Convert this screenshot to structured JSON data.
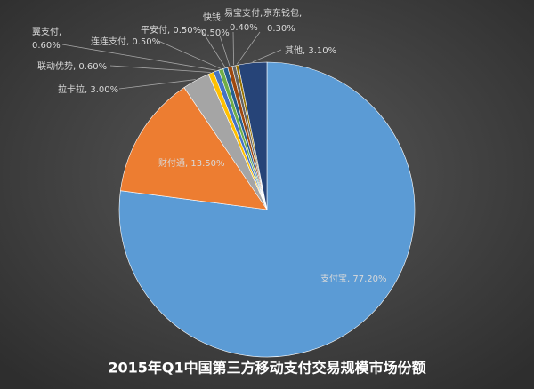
{
  "chart_data": {
    "type": "pie",
    "title": "2015年Q1中国第三方移动支付交易规模市场份额",
    "values": [
      77.2,
      13.5,
      3.0,
      0.6,
      0.6,
      0.5,
      0.5,
      0.5,
      0.4,
      0.3,
      3.1
    ],
    "value_labels": [
      "支付宝, 77.20%",
      "财付通, 13.50%",
      "拉卡拉, 3.00%",
      "联动优势, 0.60%",
      "翼支付,\n0.60%",
      "连连支付, 0.50%",
      "平安付, 0.50%",
      "快钱,\n0.50%",
      "易宝支付,\n0.40%",
      "京东钱包,\n0.30%",
      "其他, 3.10%"
    ],
    "colors": [
      "#5b9bd5",
      "#ed7d31",
      "#a5a5a5",
      "#ffc000",
      "#4472c4",
      "#70ad47",
      "#255e91",
      "#9e480e",
      "#636363",
      "#997300",
      "#264478"
    ]
  }
}
